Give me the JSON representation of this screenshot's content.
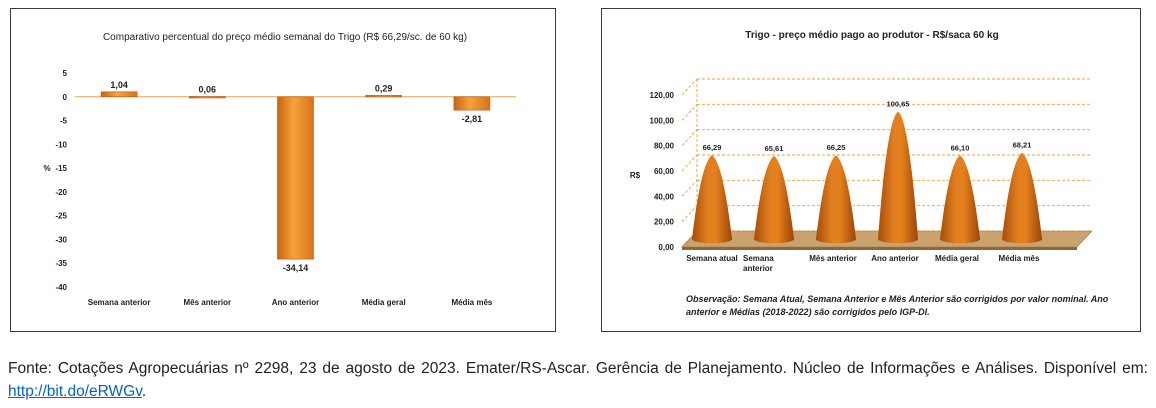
{
  "chart_data": [
    {
      "type": "bar",
      "title": "Comparativo percentual do preço médio semanal do Trigo (R$ 66,29/sc. de 60 kg)",
      "ylabel": "%",
      "ylim": [
        -40,
        5
      ],
      "yticks": [
        "5",
        "0",
        "-5",
        "-10",
        "-15",
        "-20",
        "-25",
        "-30",
        "-35",
        "-40"
      ],
      "ytick_values": [
        5,
        0,
        -5,
        -10,
        -15,
        -20,
        -25,
        -30,
        -35,
        -40
      ],
      "categories": [
        "Semana anterior",
        "Mês anterior",
        "Ano anterior",
        "Média geral",
        "Média mês"
      ],
      "values": [
        1.04,
        0.06,
        -34.14,
        0.29,
        -2.81
      ],
      "value_labels": [
        "1,04",
        "0,06",
        "-34,14",
        "0,29",
        "-2,81"
      ],
      "color": "#f0922b",
      "grid": false
    },
    {
      "type": "bar",
      "style": "3d-cone",
      "title": "Trigo - preço médio pago ao produtor - R$/saca 60 kg",
      "ylabel": "R$",
      "ylim": [
        0,
        120
      ],
      "yticks": [
        "0,00",
        "20,00",
        "40,00",
        "60,00",
        "80,00",
        "100,00",
        "120,00"
      ],
      "ytick_values": [
        0,
        20,
        40,
        60,
        80,
        100,
        120
      ],
      "categories": [
        "Semana atual",
        "Semana anterior",
        "Mês anterior",
        "Ano anterior",
        "Média geral",
        "Média mês"
      ],
      "category_lines": [
        [
          "Semana atual"
        ],
        [
          "Semana",
          "anterior"
        ],
        [
          "Mês anterior"
        ],
        [
          "Ano anterior"
        ],
        [
          "Média geral"
        ],
        [
          "Média mês"
        ]
      ],
      "values": [
        66.29,
        65.61,
        66.25,
        100.65,
        66.1,
        68.21
      ],
      "value_labels": [
        "66,29",
        "65,61",
        "66,25",
        "100,65",
        "66,10",
        "68,21"
      ],
      "color": "#d96f14",
      "grid": true,
      "note": "Observação: Semana Atual, Semana Anterior e Mês Anterior são corrigidos por valor nominal. Ano anterior e Médias (2018-2022) são corrigidos pelo IGP-DI."
    }
  ],
  "source": {
    "text": "Fonte: Cotações Agropecuárias nº 2298, 23 de agosto de 2023. Emater/RS-Ascar. Gerência de Planejamento. Núcleo de Informações e Análises. Disponível em: ",
    "link_text": "http://bit.do/eRWGv",
    "suffix": "."
  }
}
